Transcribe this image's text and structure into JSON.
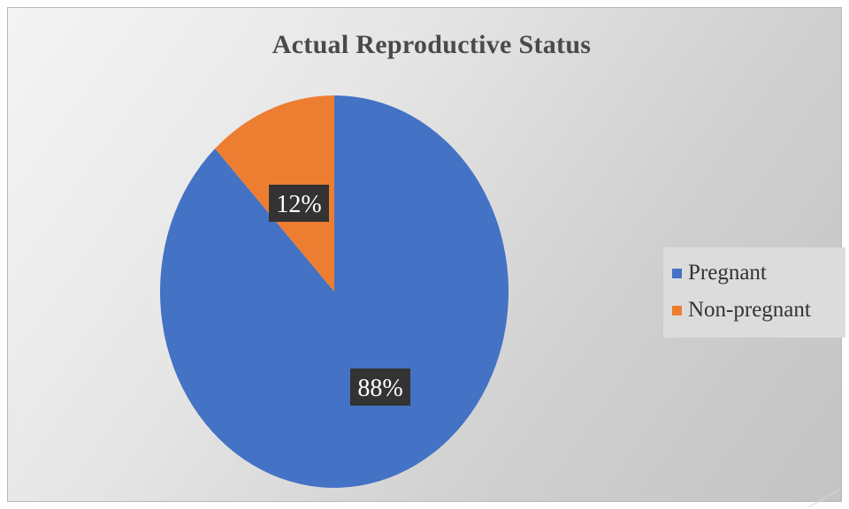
{
  "chart_data": {
    "type": "pie",
    "title": "Actual Reproductive Status",
    "slices": [
      {
        "label": "Pregnant",
        "value": 88,
        "display": "88%",
        "color": "#4472c4"
      },
      {
        "label": "Non-pregnant",
        "value": 12,
        "display": "12%",
        "color": "#ed7d31"
      }
    ],
    "legend": {
      "position": "right",
      "items": [
        "Pregnant",
        "Non-pregnant"
      ]
    }
  }
}
